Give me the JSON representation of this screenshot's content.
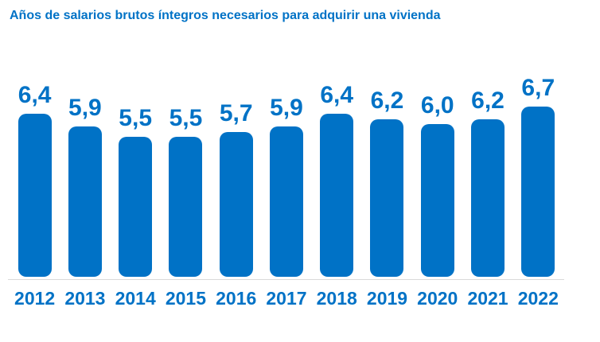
{
  "page": {
    "background": "#FFFFFF"
  },
  "colors": {
    "accent": "#0072C6",
    "baseline_line": "#D9D9D9"
  },
  "chart_data": {
    "type": "bar",
    "title": "Años de salarios brutos íntegros necesarios para adquirir una vivienda",
    "categories": [
      "2012",
      "2013",
      "2014",
      "2015",
      "2016",
      "2017",
      "2018",
      "2019",
      "2020",
      "2021",
      "2022"
    ],
    "values": [
      6.4,
      5.9,
      5.5,
      5.5,
      5.7,
      5.9,
      6.4,
      6.2,
      6.0,
      6.2,
      6.7
    ],
    "value_labels": [
      "6,4",
      "5,9",
      "5,5",
      "5,5",
      "5,7",
      "5,9",
      "6,4",
      "6,2",
      "6,0",
      "6,2",
      "6,7"
    ],
    "xlabel": "",
    "ylabel": "",
    "ylim": [
      0,
      7
    ],
    "grid": false,
    "legend": false,
    "bar_color": "#0072C6",
    "label_position": "above",
    "decimal_separator": ","
  }
}
